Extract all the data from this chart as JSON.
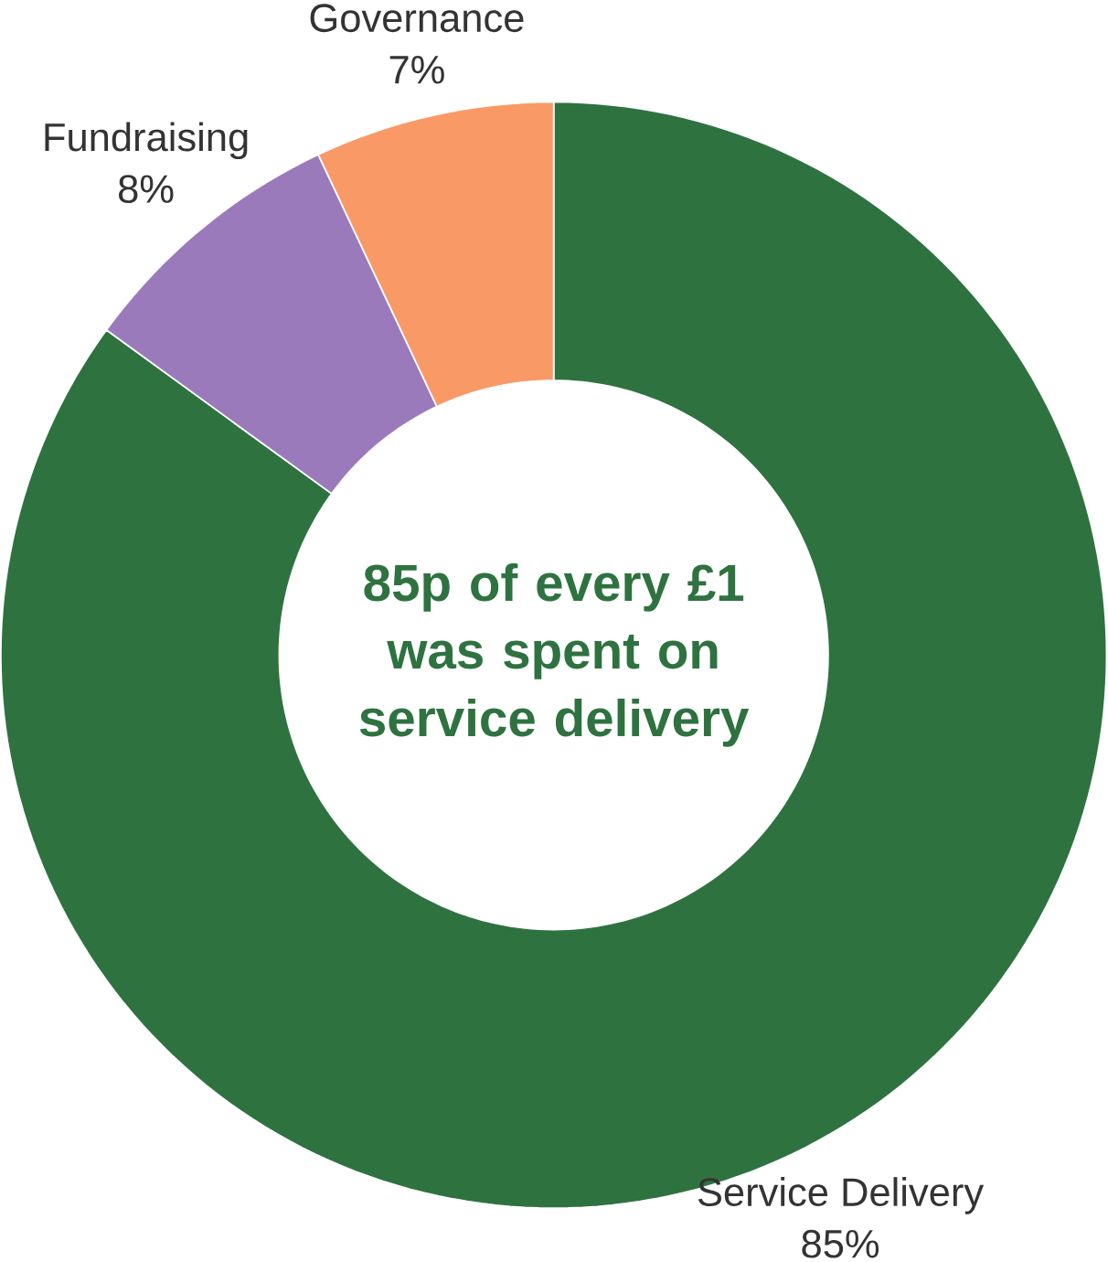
{
  "chart_data": {
    "type": "donut",
    "categories": [
      "Service Delivery",
      "Fundraising",
      "Governance"
    ],
    "values": [
      85,
      8,
      7
    ],
    "value_labels": [
      "85%",
      "8%",
      "7%"
    ],
    "colors": [
      "#2e7240",
      "#9b7abb",
      "#f99a66"
    ],
    "annotations": [
      "85p of every £1 was spent on service delivery"
    ]
  }
}
